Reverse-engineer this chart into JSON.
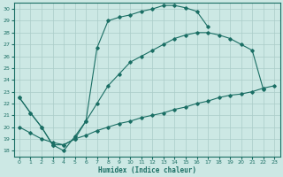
{
  "xlabel": "Humidex (Indice chaleur)",
  "bg_color": "#cce8e4",
  "line_color": "#1a6e64",
  "grid_color": "#aaccc8",
  "xlim": [
    -0.5,
    23.5
  ],
  "ylim": [
    17.5,
    30.5
  ],
  "xticks": [
    0,
    1,
    2,
    3,
    4,
    5,
    6,
    7,
    8,
    9,
    10,
    11,
    12,
    13,
    14,
    15,
    16,
    17,
    18,
    19,
    20,
    21,
    22,
    23
  ],
  "yticks": [
    18,
    19,
    20,
    21,
    22,
    23,
    24,
    25,
    26,
    27,
    28,
    29,
    30
  ],
  "line1_x": [
    0,
    1,
    2,
    3,
    4,
    5,
    6,
    7,
    8,
    9,
    10,
    11,
    12,
    13,
    14,
    15,
    16,
    17
  ],
  "line1_y": [
    22.5,
    21.2,
    20.0,
    18.5,
    18.0,
    19.2,
    20.5,
    26.7,
    29.0,
    29.3,
    29.5,
    29.8,
    30.0,
    30.3,
    30.3,
    30.1,
    29.8,
    28.5
  ],
  "line2_x": [
    0,
    1,
    2,
    3,
    4,
    5,
    6,
    7,
    8,
    9,
    10,
    11,
    12,
    13,
    14,
    15,
    16,
    17,
    18,
    19,
    20,
    21,
    22
  ],
  "line2_y": [
    22.5,
    21.2,
    20.0,
    18.5,
    18.5,
    19.0,
    20.5,
    22.0,
    23.5,
    24.5,
    25.5,
    26.0,
    26.5,
    27.0,
    27.5,
    27.8,
    28.0,
    28.0,
    27.8,
    27.5,
    27.0,
    26.5,
    23.2
  ],
  "line3_x": [
    0,
    1,
    2,
    3,
    4,
    5,
    6,
    7,
    8,
    9,
    10,
    11,
    12,
    13,
    14,
    15,
    16,
    17,
    18,
    19,
    20,
    21,
    22,
    23
  ],
  "line3_y": [
    20.0,
    19.5,
    19.0,
    18.7,
    18.5,
    19.0,
    19.3,
    19.7,
    20.0,
    20.3,
    20.5,
    20.8,
    21.0,
    21.2,
    21.5,
    21.7,
    22.0,
    22.2,
    22.5,
    22.7,
    22.8,
    23.0,
    23.3,
    23.5
  ]
}
